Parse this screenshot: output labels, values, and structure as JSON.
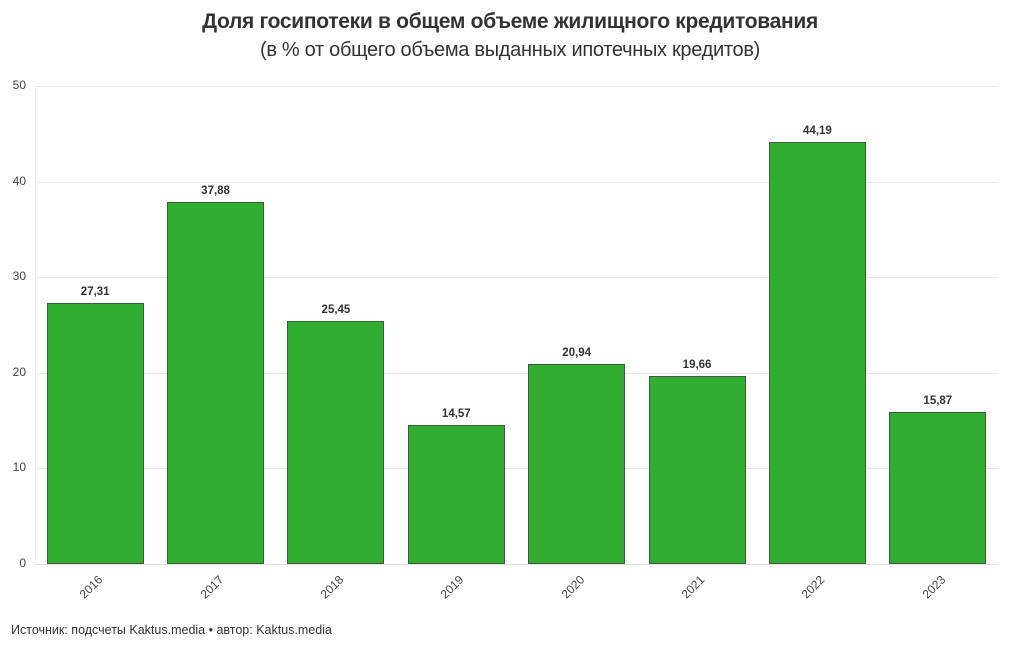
{
  "title": "Доля госипотеки в общем объеме жилищного кредитования",
  "subtitle": "(в % от общего объема выданных ипотечных кредитов)",
  "footer": {
    "source": "Источник: подсчеты Kaktus.media • автор: Kaktus.media"
  },
  "colors": {
    "bar": "#31ad31",
    "bar_border": "#3d5c3d",
    "grid": "#e8e8e8",
    "text": "#333333"
  },
  "y_axis": {
    "ticks": [
      "0",
      "10",
      "20",
      "30",
      "40",
      "50"
    ]
  },
  "bars": [
    {
      "year": "2016",
      "label": "27,31"
    },
    {
      "year": "2017",
      "label": "37,88"
    },
    {
      "year": "2018",
      "label": "25,45"
    },
    {
      "year": "2019",
      "label": "14,57"
    },
    {
      "year": "2020",
      "label": "20,94"
    },
    {
      "year": "2021",
      "label": "19,66"
    },
    {
      "year": "2022",
      "label": "44,19"
    },
    {
      "year": "2023",
      "label": "15,87"
    }
  ],
  "chart_data": {
    "type": "bar",
    "title": "Доля госипотеки в общем объеме жилищного кредитования",
    "subtitle": "(в % от общего объема выданных ипотечных кредитов)",
    "categories": [
      "2016",
      "2017",
      "2018",
      "2019",
      "2020",
      "2021",
      "2022",
      "2023"
    ],
    "values": [
      27.31,
      37.88,
      25.45,
      14.57,
      20.94,
      19.66,
      44.19,
      15.87
    ],
    "data_labels": [
      "27,31",
      "37,88",
      "25,45",
      "14,57",
      "20,94",
      "19,66",
      "44,19",
      "15,87"
    ],
    "xlabel": "",
    "ylabel": "",
    "ylim": [
      0,
      50
    ],
    "yticks": [
      0,
      10,
      20,
      30,
      40,
      50
    ],
    "grid": true,
    "legend": null,
    "x_tick_rotation": -45,
    "color": "#31ad31",
    "source": "Источник: подсчеты Kaktus.media • автор: Kaktus.media"
  }
}
